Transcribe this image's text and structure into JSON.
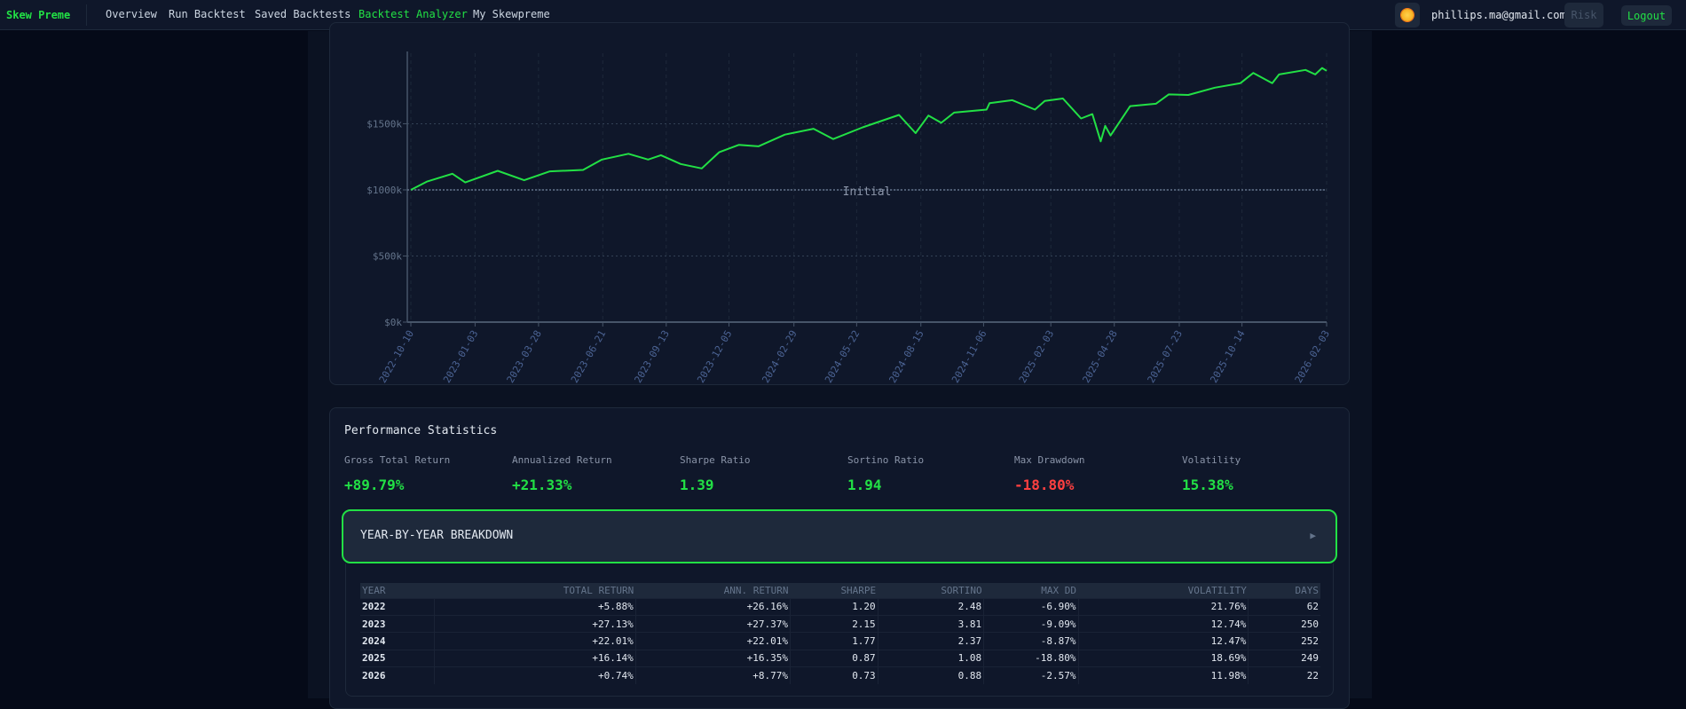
{
  "nav": {
    "brand": "Skew Preme",
    "items": [
      {
        "label": "Overview"
      },
      {
        "label": "Run Backtest"
      },
      {
        "label": "Saved Backtests"
      },
      {
        "label": "Backtest Analyzer",
        "active": true
      },
      {
        "label": "My Skewpreme"
      }
    ],
    "theme_icon": "sun-icon",
    "email": "phillips.ma@gmail.com",
    "risk": "Risk",
    "logout": "Logout"
  },
  "colors": {
    "accent": "#22e045",
    "negative": "#ff4040",
    "bg": "#0f172a"
  },
  "chart_data": {
    "type": "line",
    "title": "",
    "xlabel": "",
    "ylabel": "",
    "ylim": [
      0,
      1966
    ],
    "y_ticks": [
      {
        "v": 0,
        "label": "$0k"
      },
      {
        "v": 500,
        "label": "$500k"
      },
      {
        "v": 1000,
        "label": "$1000k"
      },
      {
        "v": 1500,
        "label": "$1500k"
      }
    ],
    "x_ticks": [
      "2022-10-10",
      "2023-01-03",
      "2023-03-28",
      "2023-06-21",
      "2023-09-13",
      "2023-12-05",
      "2024-02-29",
      "2024-05-22",
      "2024-08-15",
      "2024-11-06",
      "2025-02-03",
      "2025-04-28",
      "2025-07-23",
      "2025-10-14",
      "2026-02-03"
    ],
    "reference_line": {
      "value": 1000,
      "label": "Initial"
    },
    "grid": true,
    "series": [
      {
        "color": "#22e045",
        "points": [
          [
            "2022-10-10",
            1000
          ],
          [
            "2022-10-31",
            1062
          ],
          [
            "2022-12-04",
            1122
          ],
          [
            "2022-12-21",
            1056
          ],
          [
            "2023-02-02",
            1144
          ],
          [
            "2023-03-09",
            1073
          ],
          [
            "2023-04-12",
            1140
          ],
          [
            "2023-05-26",
            1151
          ],
          [
            "2023-06-20",
            1229
          ],
          [
            "2023-07-25",
            1273
          ],
          [
            "2023-08-20",
            1229
          ],
          [
            "2023-09-06",
            1262
          ],
          [
            "2023-10-02",
            1196
          ],
          [
            "2023-10-30",
            1162
          ],
          [
            "2023-11-22",
            1284
          ],
          [
            "2023-12-18",
            1340
          ],
          [
            "2024-01-13",
            1329
          ],
          [
            "2024-02-17",
            1418
          ],
          [
            "2024-03-26",
            1462
          ],
          [
            "2024-04-21",
            1384
          ],
          [
            "2024-05-30",
            1473
          ],
          [
            "2024-07-17",
            1567
          ],
          [
            "2024-08-08",
            1429
          ],
          [
            "2024-08-25",
            1562
          ],
          [
            "2024-09-11",
            1507
          ],
          [
            "2024-09-28",
            1584
          ],
          [
            "2024-11-10",
            1607
          ],
          [
            "2024-11-14",
            1656
          ],
          [
            "2024-12-14",
            1678
          ],
          [
            "2025-01-13",
            1607
          ],
          [
            "2025-01-26",
            1673
          ],
          [
            "2025-02-19",
            1691
          ],
          [
            "2025-03-15",
            1540
          ],
          [
            "2025-03-30",
            1573
          ],
          [
            "2025-04-10",
            1367
          ],
          [
            "2025-04-16",
            1484
          ],
          [
            "2025-04-23",
            1411
          ],
          [
            "2025-05-19",
            1633
          ],
          [
            "2025-06-22",
            1651
          ],
          [
            "2025-07-09",
            1722
          ],
          [
            "2025-08-04",
            1718
          ],
          [
            "2025-09-08",
            1773
          ],
          [
            "2025-10-12",
            1807
          ],
          [
            "2025-10-29",
            1884
          ],
          [
            "2025-11-23",
            1807
          ],
          [
            "2025-12-02",
            1873
          ],
          [
            "2026-01-06",
            1907
          ],
          [
            "2026-01-19",
            1873
          ],
          [
            "2026-01-28",
            1922
          ],
          [
            "2026-02-03",
            1900
          ]
        ]
      }
    ]
  },
  "perf": {
    "title": "Performance Statistics",
    "stats": [
      {
        "label": "Gross Total Return",
        "value": "+89.79%"
      },
      {
        "label": "Annualized Return",
        "value": "+21.33%"
      },
      {
        "label": "Sharpe Ratio",
        "value": "1.39"
      },
      {
        "label": "Sortino Ratio",
        "value": "1.94"
      },
      {
        "label": "Max Drawdown",
        "value": "-18.80%",
        "negative": true
      },
      {
        "label": "Volatility",
        "value": "15.38%"
      }
    ],
    "breakdown": {
      "label": "YEAR-BY-YEAR BREAKDOWN",
      "icon": "chevron-right-icon"
    },
    "table": {
      "headers": [
        "YEAR",
        "TOTAL RETURN",
        "ANN. RETURN",
        "SHARPE",
        "SORTINO",
        "MAX DD",
        "VOLATILITY",
        "DAYS"
      ],
      "rows": [
        [
          "2022",
          "+5.88%",
          "+26.16%",
          "1.20",
          "2.48",
          "-6.90%",
          "21.76%",
          "62"
        ],
        [
          "2023",
          "+27.13%",
          "+27.37%",
          "2.15",
          "3.81",
          "-9.09%",
          "12.74%",
          "250"
        ],
        [
          "2024",
          "+22.01%",
          "+22.01%",
          "1.77",
          "2.37",
          "-8.87%",
          "12.47%",
          "252"
        ],
        [
          "2025",
          "+16.14%",
          "+16.35%",
          "0.87",
          "1.08",
          "-18.80%",
          "18.69%",
          "249"
        ],
        [
          "2026",
          "+0.74%",
          "+8.77%",
          "0.73",
          "0.88",
          "-2.57%",
          "11.98%",
          "22"
        ]
      ]
    }
  }
}
